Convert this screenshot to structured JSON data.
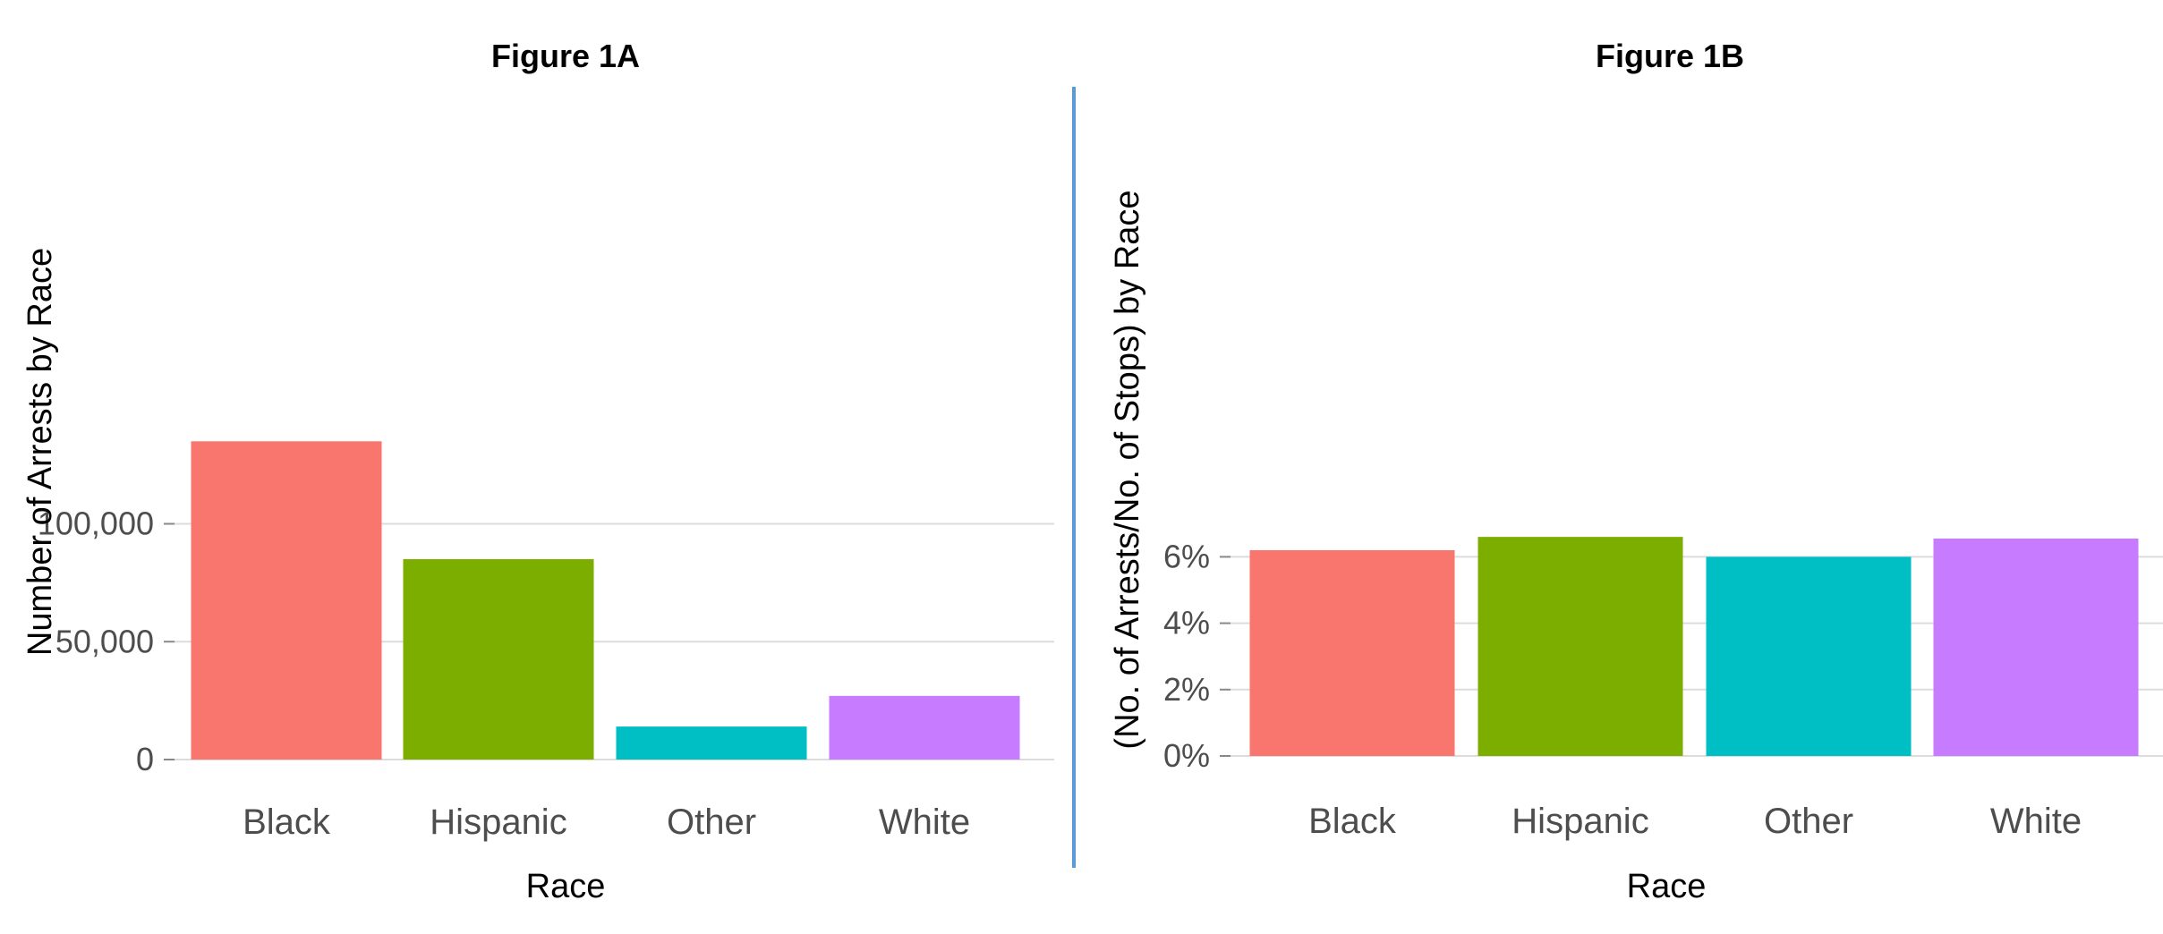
{
  "chart_data": [
    {
      "type": "bar",
      "title": "Figure 1A",
      "xlabel": "Race",
      "ylabel": "Number of Arrests by Race",
      "categories": [
        "Black",
        "Hispanic",
        "Other",
        "White"
      ],
      "values": [
        135000,
        85000,
        14000,
        27000
      ],
      "colors": [
        "#f8766d",
        "#7cae00",
        "#00bfc4",
        "#c77cff"
      ],
      "yticks": [
        0,
        50000,
        100000
      ],
      "ytick_labels": [
        "0",
        "50,000",
        "100,000"
      ],
      "ylim": [
        0,
        140000
      ],
      "grid": true
    },
    {
      "type": "bar",
      "title": "Figure 1B",
      "xlabel": "Race",
      "ylabel": "(No. of Arrests/No. of Stops) by Race",
      "categories": [
        "Black",
        "Hispanic",
        "Other",
        "White"
      ],
      "values": [
        6.2,
        6.6,
        6.0,
        6.55
      ],
      "colors": [
        "#f8766d",
        "#7cae00",
        "#00bfc4",
        "#c77cff"
      ],
      "yticks": [
        0,
        2,
        4,
        6
      ],
      "ytick_labels": [
        "0%",
        "2%",
        "4%",
        "6%"
      ],
      "ylim": [
        0,
        6.6
      ],
      "grid": true
    }
  ],
  "divider_color": "#5b9bd5",
  "grid_color": "#dcdcdc"
}
